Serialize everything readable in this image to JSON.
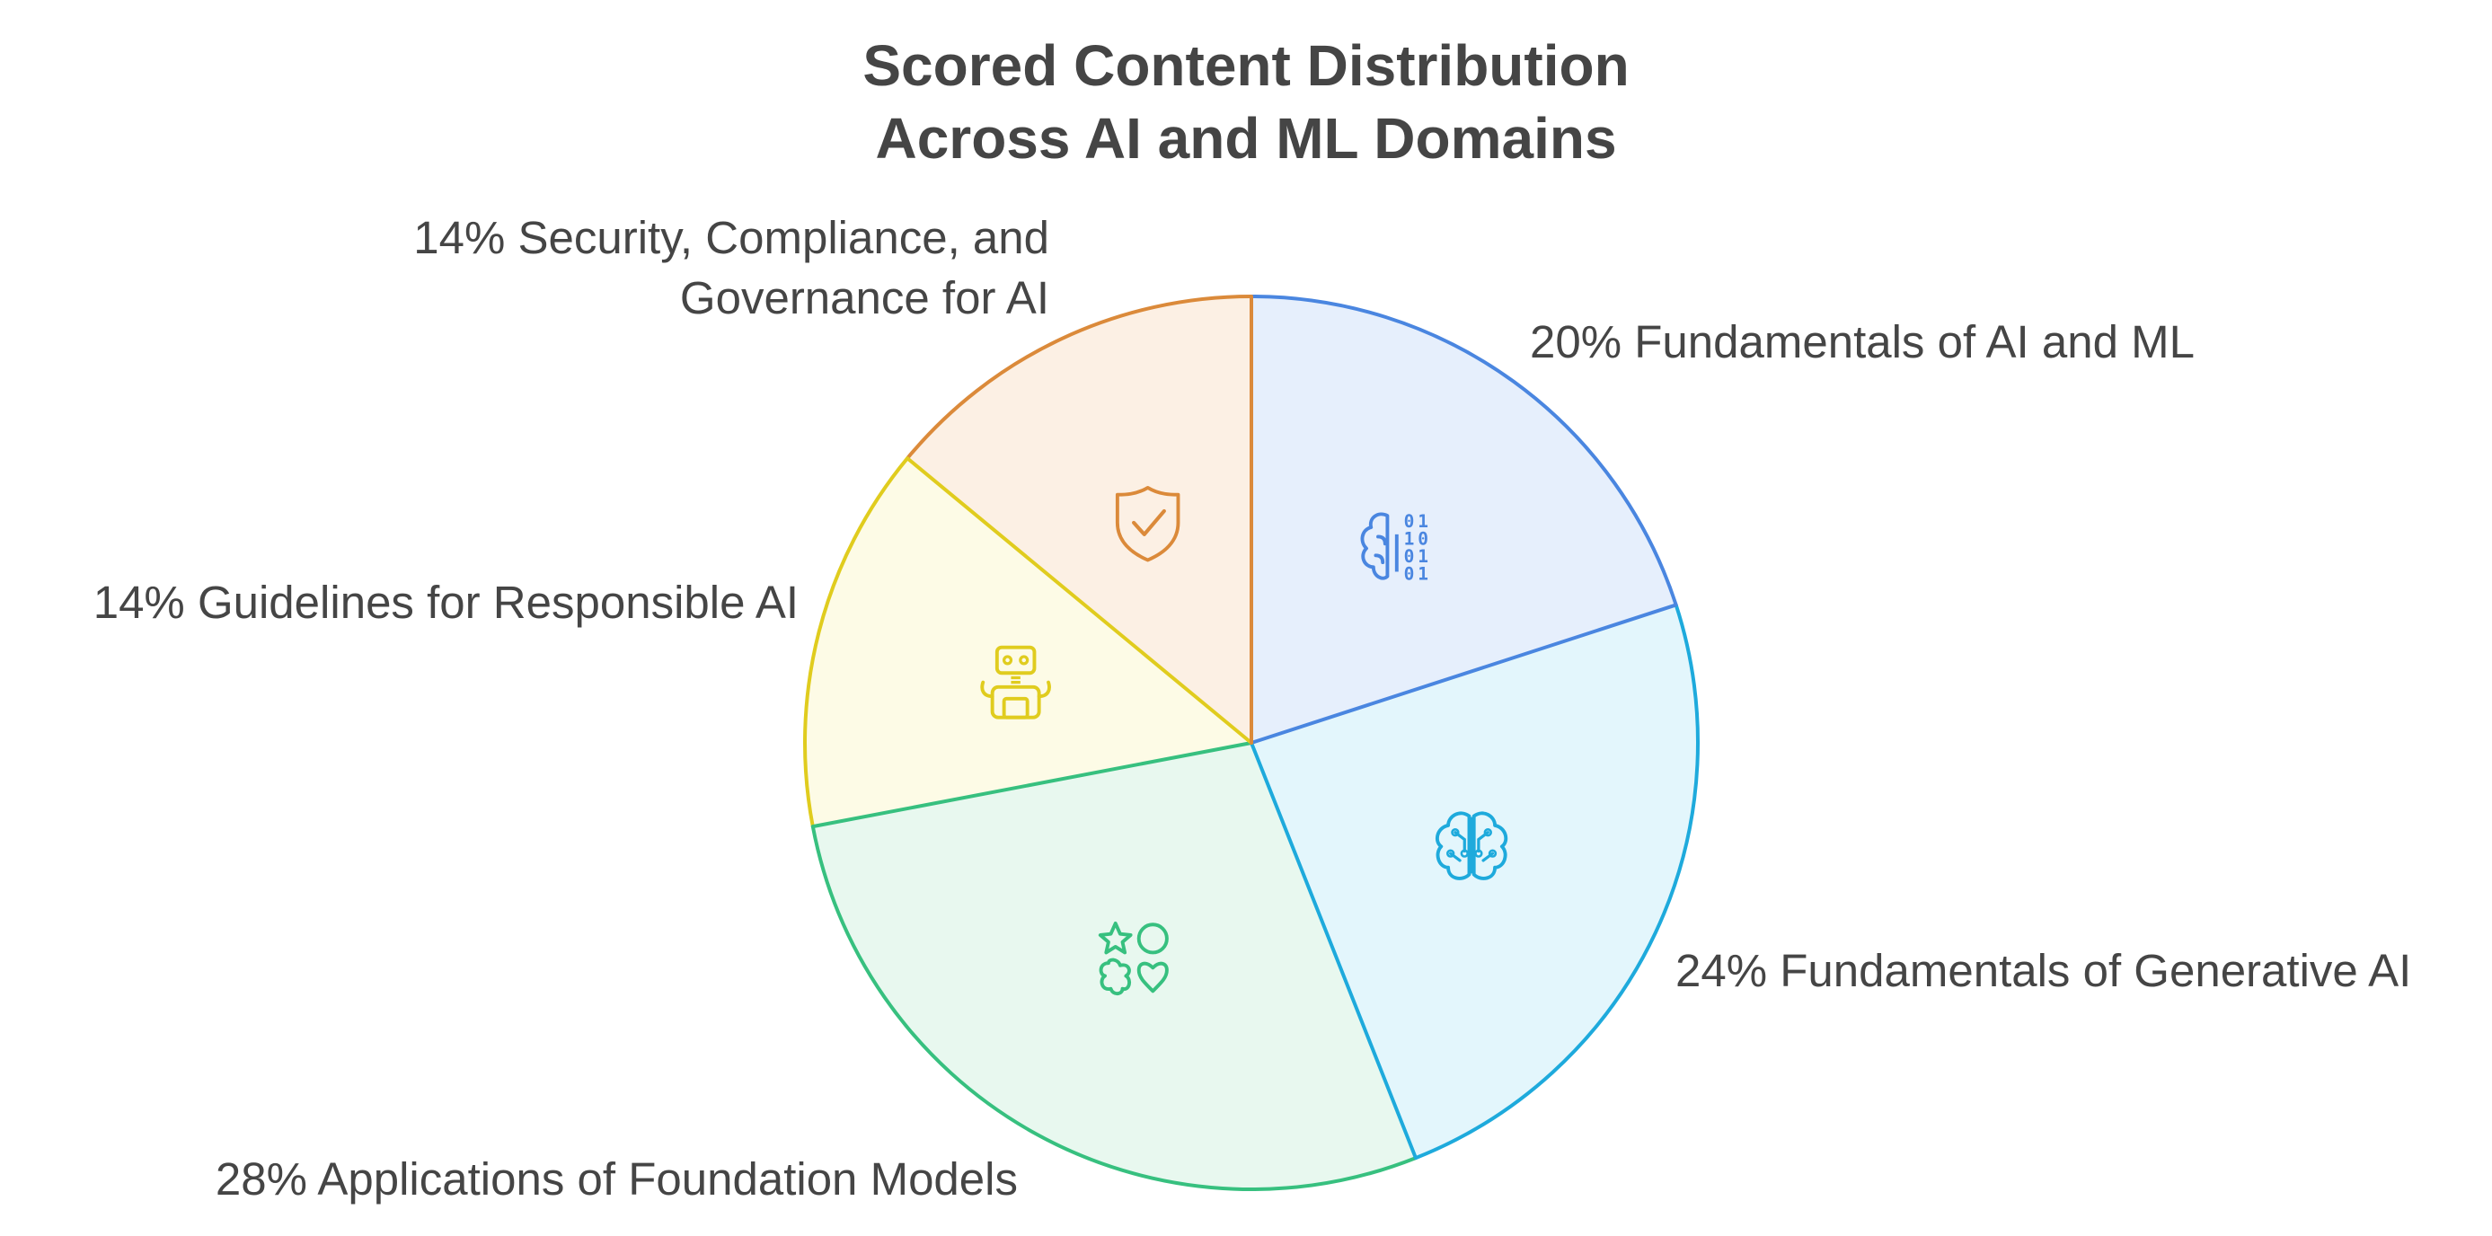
{
  "chart_data": {
    "type": "pie",
    "title": [
      "Scored Content Distribution",
      "Across AI and ML Domains"
    ],
    "slices": [
      {
        "percent_label": "20%",
        "name": "Fundamentals of AI and ML",
        "label_lines": [
          "20% Fundamentals of AI and ML"
        ],
        "value": 20,
        "stroke": "#4a86e0",
        "fill": "#e6effc",
        "icon": "binary-brain-icon"
      },
      {
        "percent_label": "24%",
        "name": "Fundamentals of Generative AI",
        "label_lines": [
          "24% Fundamentals of Generative AI"
        ],
        "value": 24,
        "stroke": "#1eaadc",
        "fill": "#e3f6fc",
        "icon": "circuit-brain-icon"
      },
      {
        "percent_label": "28%",
        "name": "Applications of Foundation Models",
        "label_lines": [
          "28% Applications of Foundation Models"
        ],
        "value": 28,
        "stroke": "#37c07f",
        "fill": "#e8f8ef",
        "icon": "shapes-icon"
      },
      {
        "percent_label": "14%",
        "name": "Guidelines for Responsible AI",
        "label_lines": [
          "14% Guidelines for Responsible AI"
        ],
        "value": 14,
        "stroke": "#e0cc1e",
        "fill": "#fdfbe6",
        "icon": "robot-icon"
      },
      {
        "percent_label": "14%",
        "name": "Security, Compliance, and Governance for AI",
        "label_lines": [
          "14% Security, Compliance, and",
          "Governance for AI"
        ],
        "value": 14,
        "stroke": "#db8a3a",
        "fill": "#fcf0e4",
        "icon": "shield-check-icon"
      }
    ],
    "start_angle": "12 o'clock",
    "direction": "clockwise",
    "legend": "none",
    "grid": false
  }
}
